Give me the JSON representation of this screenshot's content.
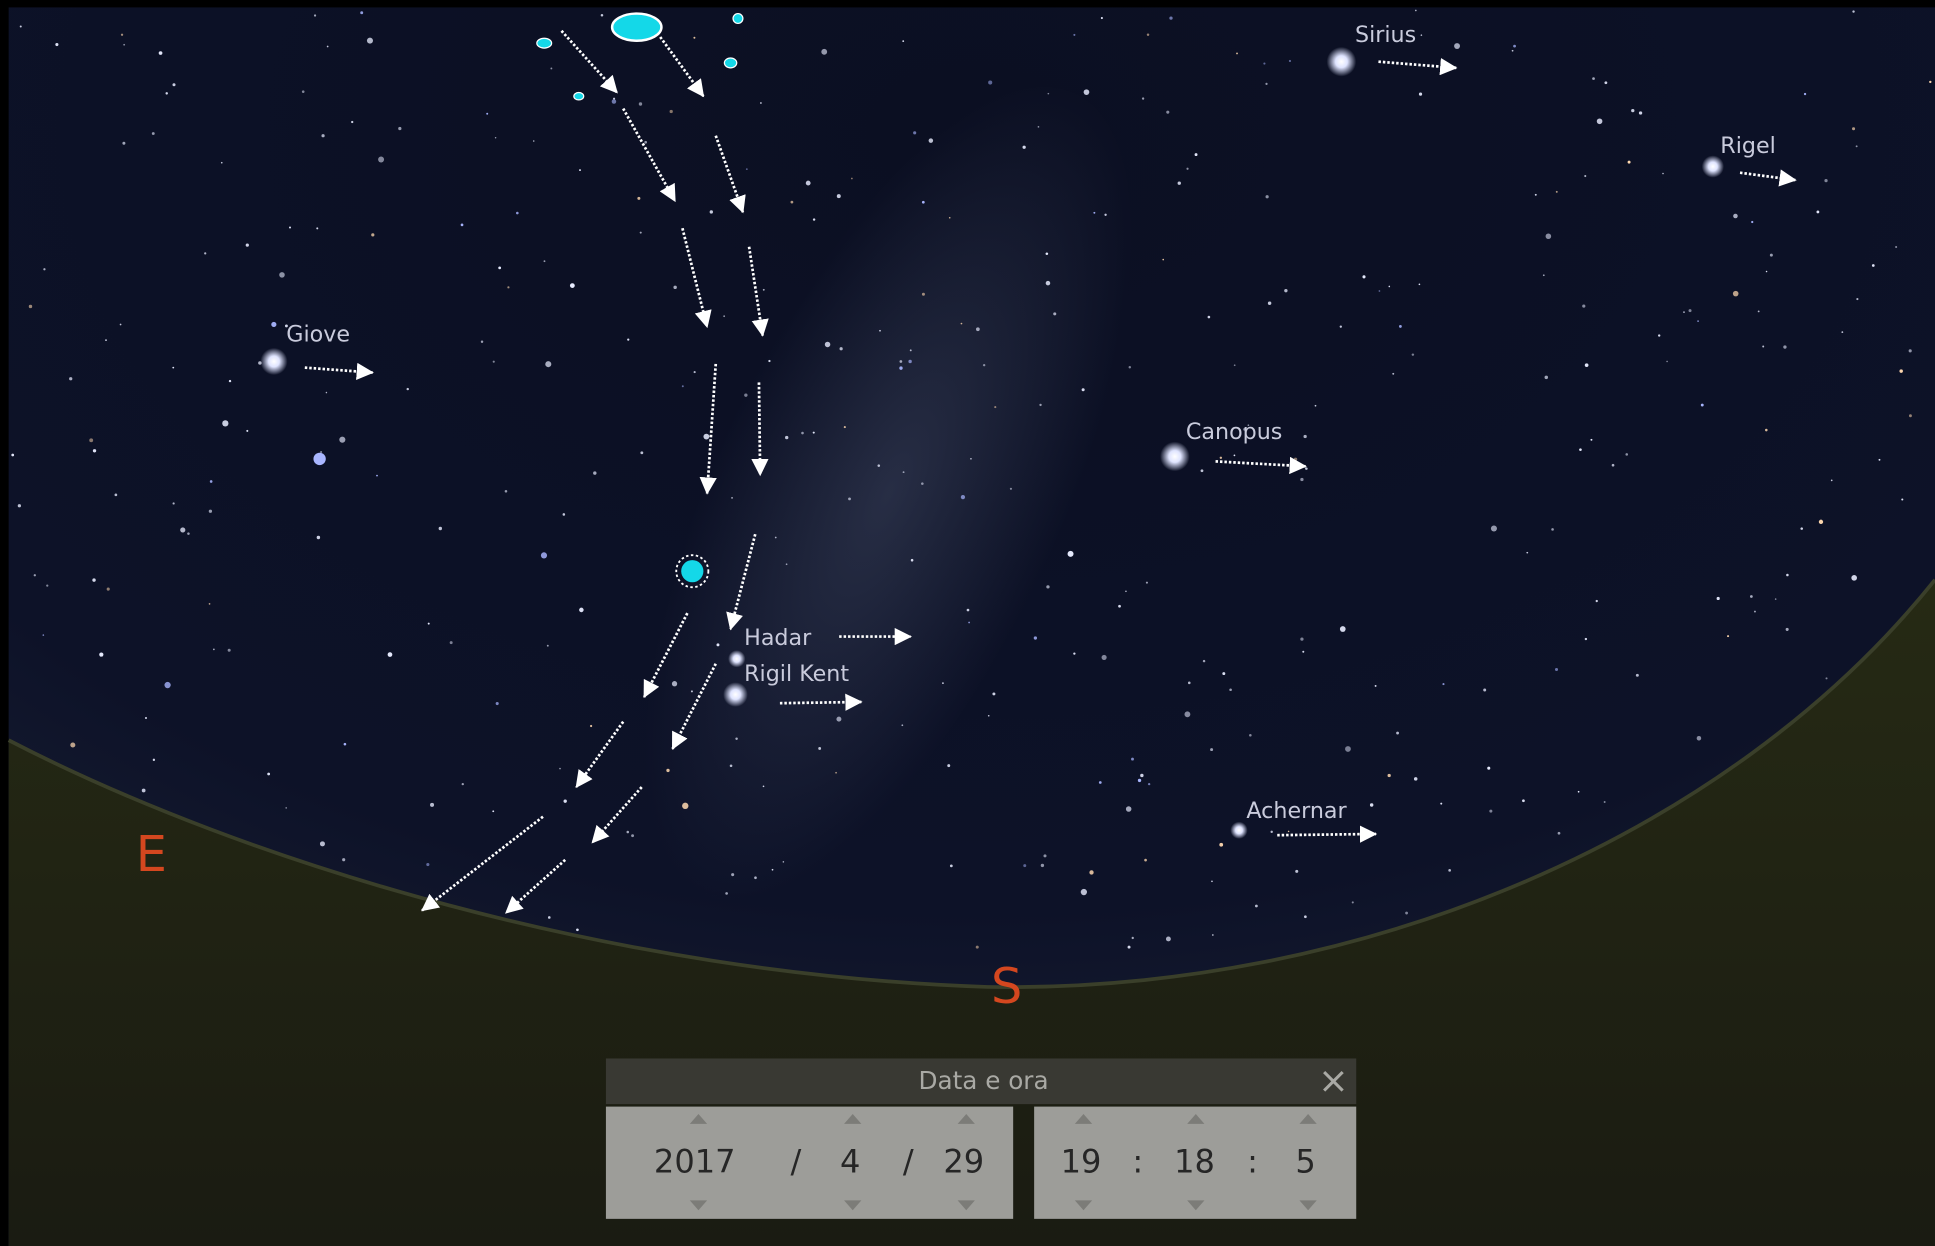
{
  "sky_labels": [
    "Sirius",
    "Rigel",
    "Giove",
    "Canopus",
    "Hadar",
    "Rigil Kent",
    "Achernar"
  ],
  "compass": [
    "E",
    "S"
  ],
  "dialog": {
    "title": "Data e ora",
    "date": {
      "year": 2017,
      "sep1": "/",
      "month": 4,
      "sep2": "/",
      "day": 29
    },
    "time": {
      "hour": 19,
      "sep1": ":",
      "minute": 18,
      "sep2": ":",
      "second": 5
    }
  }
}
